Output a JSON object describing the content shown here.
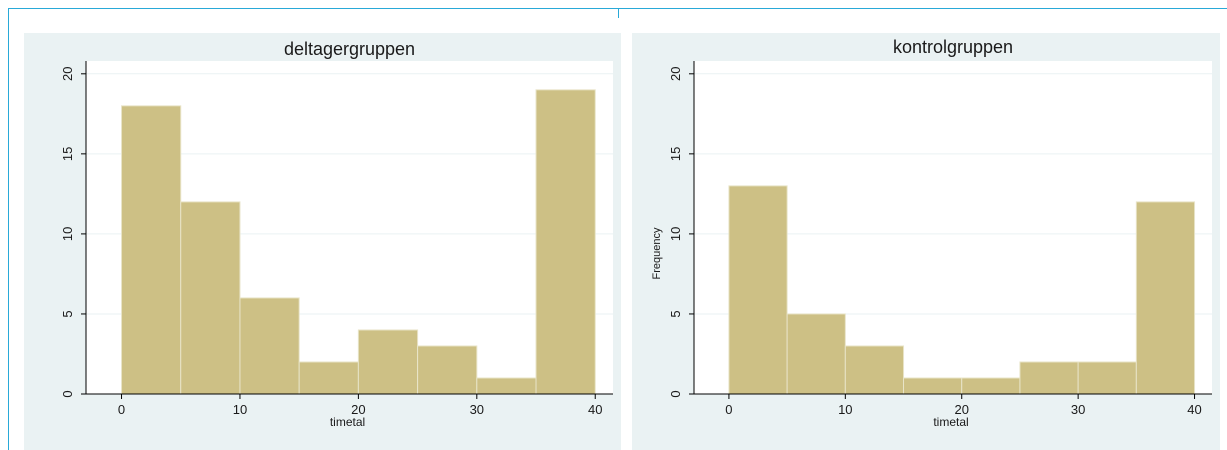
{
  "colors": {
    "bar_fill": "#cdc085",
    "bar_stroke": "#e8e4c8",
    "plot_bg": "#ffffff",
    "panel_bg": "#eaf2f3",
    "grid": "#eaf2f3",
    "frame_line": "#29a9d8"
  },
  "chart_data": [
    {
      "type": "bar",
      "title": "deltagergruppen",
      "xlabel": "timetal",
      "ylabel": "",
      "bin_edges": [
        0,
        5,
        10,
        15,
        20,
        25,
        30,
        35,
        40
      ],
      "values": [
        18,
        12,
        6,
        2,
        4,
        3,
        1,
        19
      ],
      "xlim": [
        -3,
        41.5
      ],
      "ylim": [
        0,
        20.8
      ],
      "xticks": [
        "0",
        "10",
        "20",
        "30",
        "40"
      ],
      "xtick_values": [
        0,
        10,
        20,
        30,
        40
      ],
      "yticks": [
        "0",
        "5",
        "10",
        "15",
        "20"
      ],
      "ytick_values": [
        0,
        5,
        10,
        15,
        20
      ],
      "grid": true
    },
    {
      "type": "bar",
      "title": "kontrolgruppen",
      "xlabel": "timetal",
      "ylabel": "Frequency",
      "bin_edges": [
        0,
        5,
        10,
        15,
        20,
        25,
        30,
        35,
        40
      ],
      "values": [
        13,
        5,
        3,
        1,
        1,
        2,
        2,
        12
      ],
      "xlim": [
        -3,
        41.5
      ],
      "ylim": [
        0,
        20.8
      ],
      "xticks": [
        "0",
        "10",
        "20",
        "30",
        "40"
      ],
      "xtick_values": [
        0,
        10,
        20,
        30,
        40
      ],
      "yticks": [
        "0",
        "5",
        "10",
        "15",
        "20"
      ],
      "ytick_values": [
        0,
        5,
        10,
        15,
        20
      ],
      "grid": true
    }
  ]
}
